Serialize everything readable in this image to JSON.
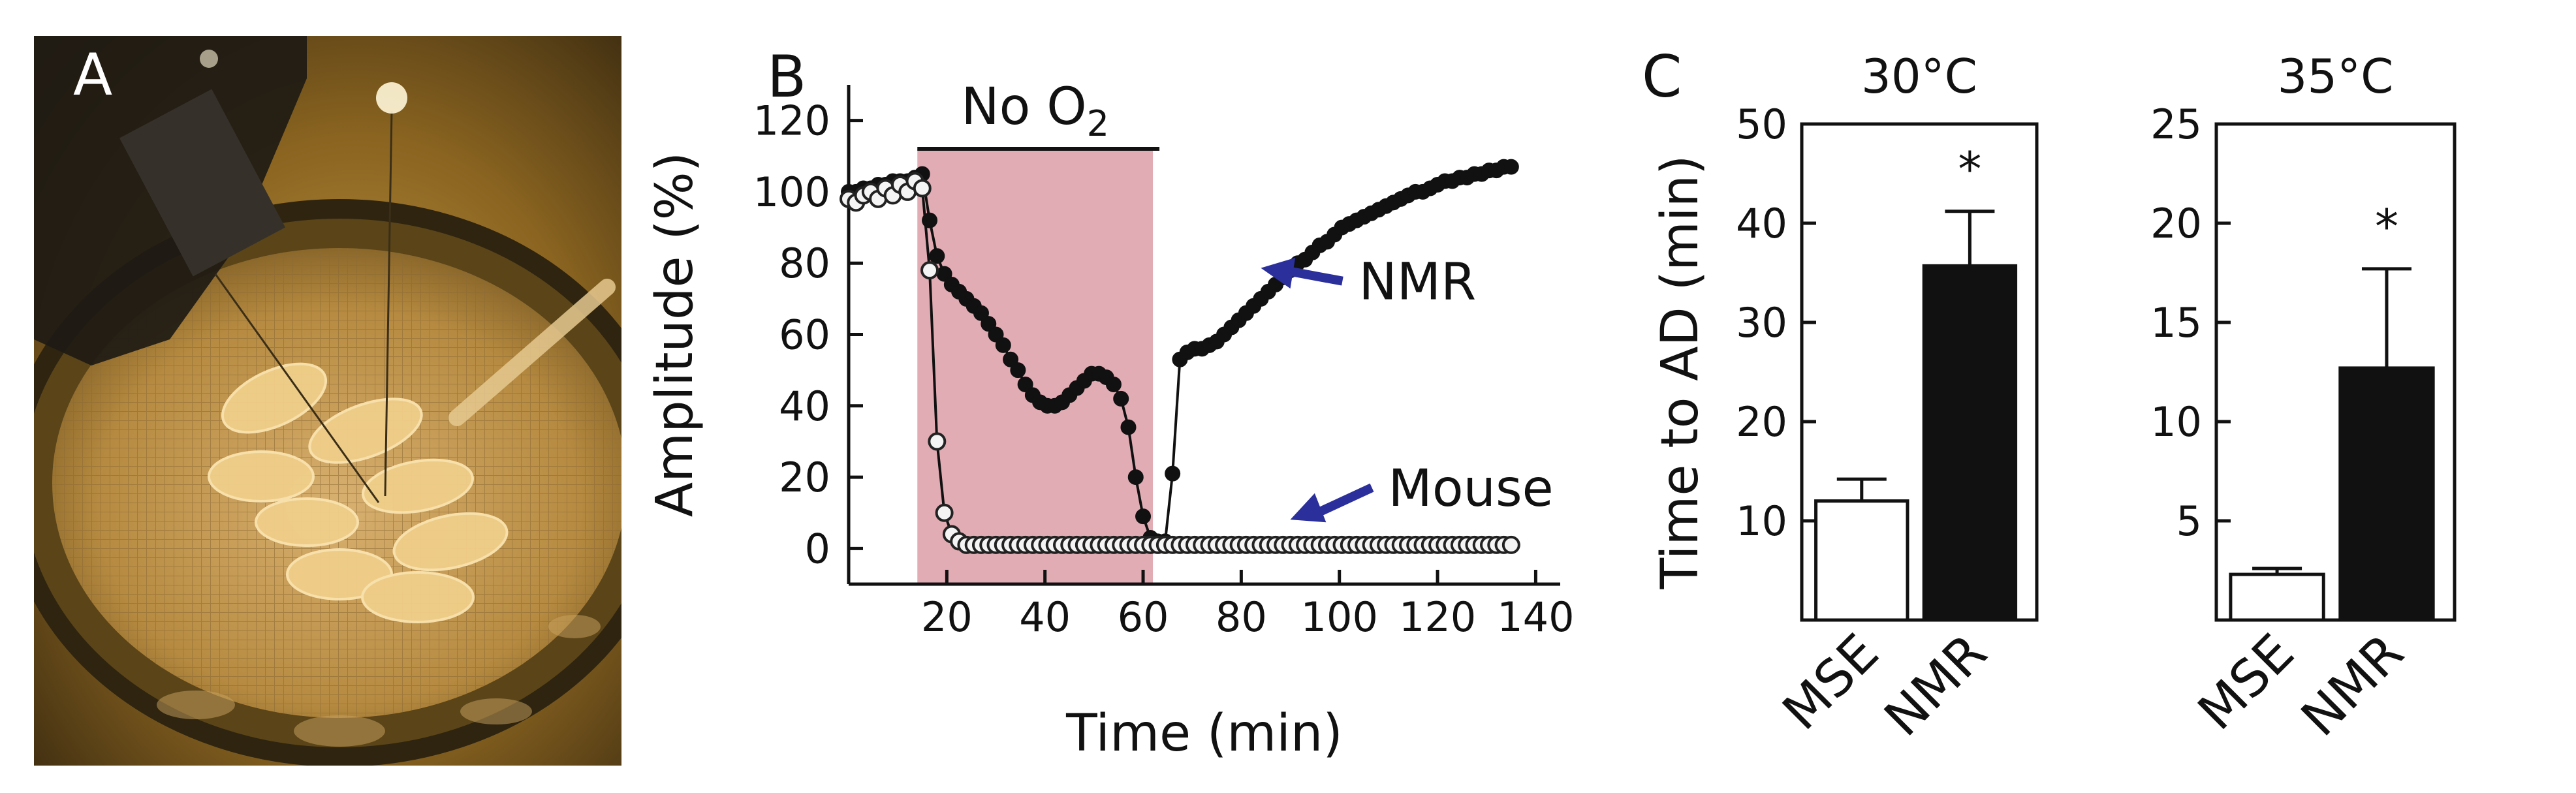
{
  "panels": {
    "a_label": "A",
    "b_label": "B",
    "c_label": "C"
  },
  "chart_data": [
    {
      "type": "line",
      "panel": "B",
      "xlabel": "Time (min)",
      "ylabel": "Amplitude (%)",
      "xlim": [
        0,
        145
      ],
      "ylim": [
        -10,
        130
      ],
      "xticks": [
        20,
        40,
        60,
        80,
        100,
        120,
        140
      ],
      "yticks": [
        0,
        20,
        40,
        60,
        80,
        100,
        120
      ],
      "shaded_region": {
        "x": [
          14,
          62
        ],
        "label_prefix": "No O",
        "label_sub": "2",
        "color": "#e2acb4"
      },
      "annotations": [
        {
          "text": "NMR",
          "target": [
            82,
            79
          ],
          "color": "#2b2f9c"
        },
        {
          "text": "Mouse",
          "target": [
            88,
            7
          ],
          "color": "#2b2f9c"
        }
      ],
      "series": [
        {
          "name": "NMR",
          "marker": "filled",
          "x": [
            0,
            1.5,
            3,
            4.5,
            6,
            7.5,
            9,
            10.5,
            12,
            13.5,
            15,
            16.5,
            18,
            19.5,
            21,
            22.5,
            24,
            25.5,
            27,
            28.5,
            30,
            31.5,
            33,
            34.5,
            36,
            37.5,
            39,
            40.5,
            42,
            43.5,
            45,
            46.5,
            48,
            49.5,
            51,
            52.5,
            54,
            55.5,
            57,
            58.5,
            60,
            61.5,
            63,
            64.5,
            66,
            67.5,
            69,
            70.5,
            72,
            73.5,
            75,
            76.5,
            78,
            79.5,
            81,
            82.5,
            84,
            85.5,
            87,
            88.5,
            90,
            91.5,
            93,
            94.5,
            96,
            97.5,
            99,
            100.5,
            102,
            103.5,
            105,
            106.5,
            108,
            109.5,
            111,
            112.5,
            114,
            115.5,
            117,
            118.5,
            120,
            121.5,
            123,
            124.5,
            126,
            127.5,
            129,
            130.5,
            132,
            133.5,
            135
          ],
          "values": [
            100,
            100,
            101,
            101,
            102,
            102,
            103,
            103,
            103,
            104,
            105,
            92,
            82,
            77,
            74,
            72,
            70,
            68,
            66,
            63,
            60,
            57,
            53,
            50,
            46,
            43,
            41,
            40,
            40,
            41,
            43,
            45,
            47,
            49,
            49,
            48,
            46,
            42,
            34,
            20,
            9,
            3,
            2,
            2,
            21,
            53,
            55,
            56,
            56,
            57,
            58,
            60,
            62,
            64,
            66,
            68,
            70,
            72,
            74,
            76,
            78,
            80,
            81,
            83,
            85,
            86,
            88,
            90,
            91,
            92,
            93,
            94,
            95,
            96,
            97,
            98,
            99,
            100,
            100,
            101,
            102,
            103,
            103,
            104,
            104,
            105,
            105,
            106,
            106,
            107,
            107
          ]
        },
        {
          "name": "Mouse",
          "marker": "open",
          "x": [
            0,
            1.5,
            3,
            4.5,
            6,
            7.5,
            9,
            10.5,
            12,
            13.5,
            15,
            16.5,
            18,
            19.5,
            21,
            22.5,
            24,
            25.5,
            27,
            28.5,
            30,
            31.5,
            33,
            34.5,
            36,
            37.5,
            39,
            40.5,
            42,
            43.5,
            45,
            46.5,
            48,
            49.5,
            51,
            52.5,
            54,
            55.5,
            57,
            58.5,
            60,
            61.5,
            63,
            64.5,
            66,
            67.5,
            69,
            70.5,
            72,
            73.5,
            75,
            76.5,
            78,
            79.5,
            81,
            82.5,
            84,
            85.5,
            87,
            88.5,
            90,
            91.5,
            93,
            94.5,
            96,
            97.5,
            99,
            100.5,
            102,
            103.5,
            105,
            106.5,
            108,
            109.5,
            111,
            112.5,
            114,
            115.5,
            117,
            118.5,
            120,
            121.5,
            123,
            124.5,
            126,
            127.5,
            129,
            130.5,
            132,
            133.5,
            135
          ],
          "values": [
            98,
            97,
            99,
            100,
            98,
            101,
            99,
            102,
            100,
            103,
            101,
            78,
            30,
            10,
            4,
            2,
            1,
            1,
            1,
            1,
            1,
            1,
            1,
            1,
            1,
            1,
            1,
            1,
            1,
            1,
            1,
            1,
            1,
            1,
            1,
            1,
            1,
            1,
            1,
            1,
            1,
            1,
            1,
            1,
            1,
            1,
            1,
            1,
            1,
            1,
            1,
            1,
            1,
            1,
            1,
            1,
            1,
            1,
            1,
            1,
            1,
            1,
            1,
            1,
            1,
            1,
            1,
            1,
            1,
            1,
            1,
            1,
            1,
            1,
            1,
            1,
            1,
            1,
            1,
            1,
            1,
            1,
            1,
            1,
            1,
            1,
            1,
            1,
            1,
            1,
            1
          ]
        }
      ]
    },
    {
      "type": "bar",
      "panel": "C-left",
      "title": "30°C",
      "ylabel": "Time to AD (min)",
      "ylim": [
        0,
        50
      ],
      "yticks": [
        10,
        20,
        30,
        40,
        50
      ],
      "categories": [
        "MSE",
        "NMR"
      ],
      "values": [
        12,
        35.7
      ],
      "errors": [
        2.2,
        5.5
      ],
      "fills": [
        "#ffffff",
        "#111111"
      ],
      "significance": [
        "",
        "*"
      ]
    },
    {
      "type": "bar",
      "panel": "C-right",
      "title": "35°C",
      "ylabel": "",
      "ylim": [
        0,
        25
      ],
      "yticks": [
        5,
        10,
        15,
        20,
        25
      ],
      "categories": [
        "MSE",
        "NMR"
      ],
      "values": [
        2.3,
        12.7
      ],
      "errors": [
        0.3,
        5.0
      ],
      "fills": [
        "#ffffff",
        "#111111"
      ],
      "significance": [
        "",
        "*"
      ]
    }
  ]
}
